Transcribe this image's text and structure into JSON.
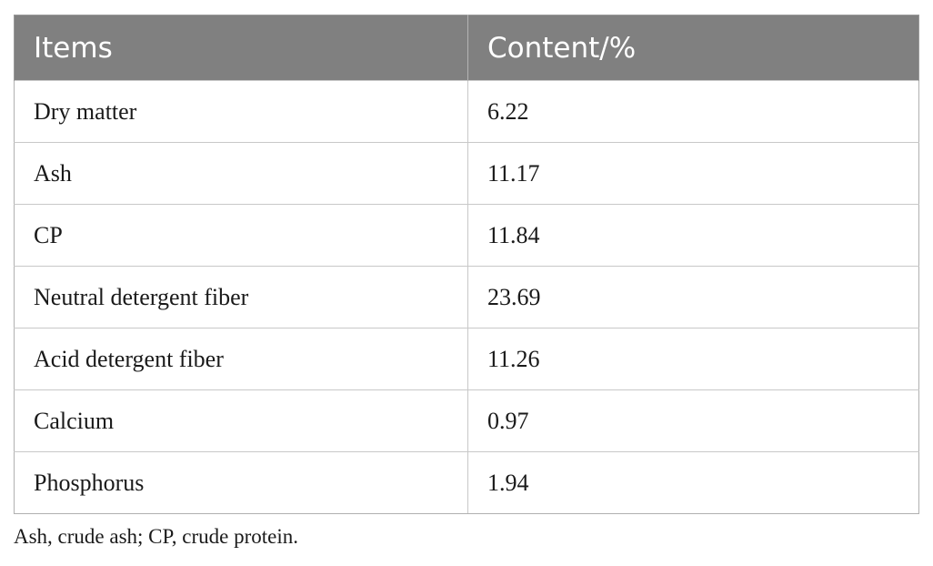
{
  "table": {
    "headers": [
      "Items",
      "Content/%"
    ],
    "rows": [
      [
        "Dry matter",
        "6.22"
      ],
      [
        "Ash",
        "11.17"
      ],
      [
        "CP",
        "11.84"
      ],
      [
        "Neutral detergent fiber",
        "23.69"
      ],
      [
        "Acid detergent fiber",
        "11.26"
      ],
      [
        "Calcium",
        "0.97"
      ],
      [
        "Phosphorus",
        "1.94"
      ]
    ]
  },
  "footnote": "Ash, crude ash; CP, crude protein.",
  "colors": {
    "header_background": "#808080",
    "header_text": "#ffffff",
    "grid_lines": "#c8c8c8"
  }
}
